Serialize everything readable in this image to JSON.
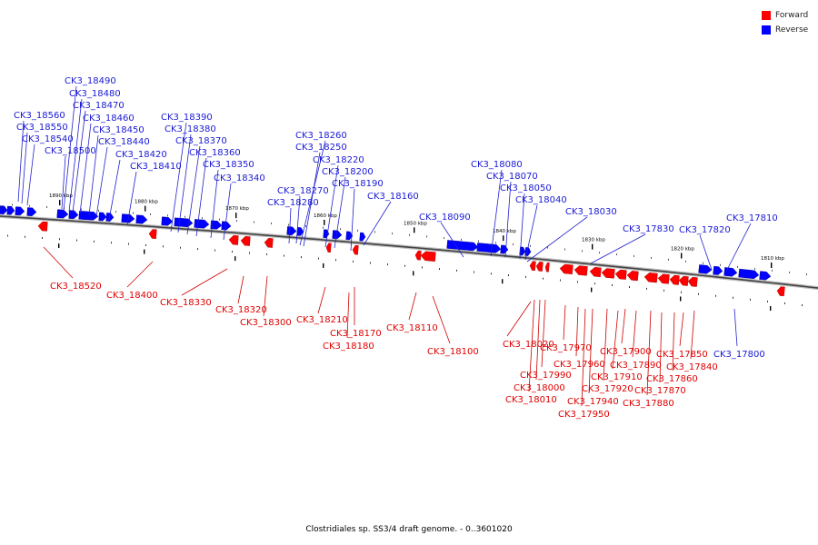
{
  "title": "Clostridiales sp. SS3/4 draft genome. - 0..3601020",
  "legend": [
    {
      "label": "Forward",
      "color": "#ff0000"
    },
    {
      "label": "Reverse",
      "color": "#0000ff"
    }
  ],
  "kbp_ticks": [
    "1890 kbp",
    "1880 kbp",
    "1870 kbp",
    "1860 kbp",
    "1850 kbp",
    "1840 kbp",
    "1830 kbp",
    "1820 kbp",
    "1810 kbp"
  ],
  "reverse_labels": [
    "CK3_18490",
    "CK3_18480",
    "CK3_18470",
    "CK3_18460",
    "CK3_18560",
    "CK3_18450",
    "CK3_18550",
    "CK3_18440",
    "CK3_18540",
    "CK3_18500",
    "CK3_18420",
    "CK3_18410",
    "CK3_18390",
    "CK3_18380",
    "CK3_18370",
    "CK3_18360",
    "CK3_18350",
    "CK3_18340",
    "CK3_18260",
    "CK3_18250",
    "CK3_18220",
    "CK3_18200",
    "CK3_18190",
    "CK3_18270",
    "CK3_18280",
    "CK3_18160",
    "CK3_18080",
    "CK3_18070",
    "CK3_18050",
    "CK3_18040",
    "CK3_18090",
    "CK3_18030",
    "CK3_17830",
    "CK3_17820",
    "CK3_17810",
    "CK3_17800"
  ],
  "forward_labels": [
    "CK3_18520",
    "CK3_18400",
    "CK3_18330",
    "CK3_18320",
    "CK3_18300",
    "CK3_18210",
    "CK3_18170",
    "CK3_18180",
    "CK3_18110",
    "CK3_18100",
    "CK3_18020",
    "CK3_17970",
    "CK3_17960",
    "CK3_17990",
    "CK3_18000",
    "CK3_18010",
    "CK3_17900",
    "CK3_17890",
    "CK3_17910",
    "CK3_17920",
    "CK3_17940",
    "CK3_17950",
    "CK3_17850",
    "CK3_17840",
    "CK3_17860",
    "CK3_17870",
    "CK3_17880"
  ]
}
